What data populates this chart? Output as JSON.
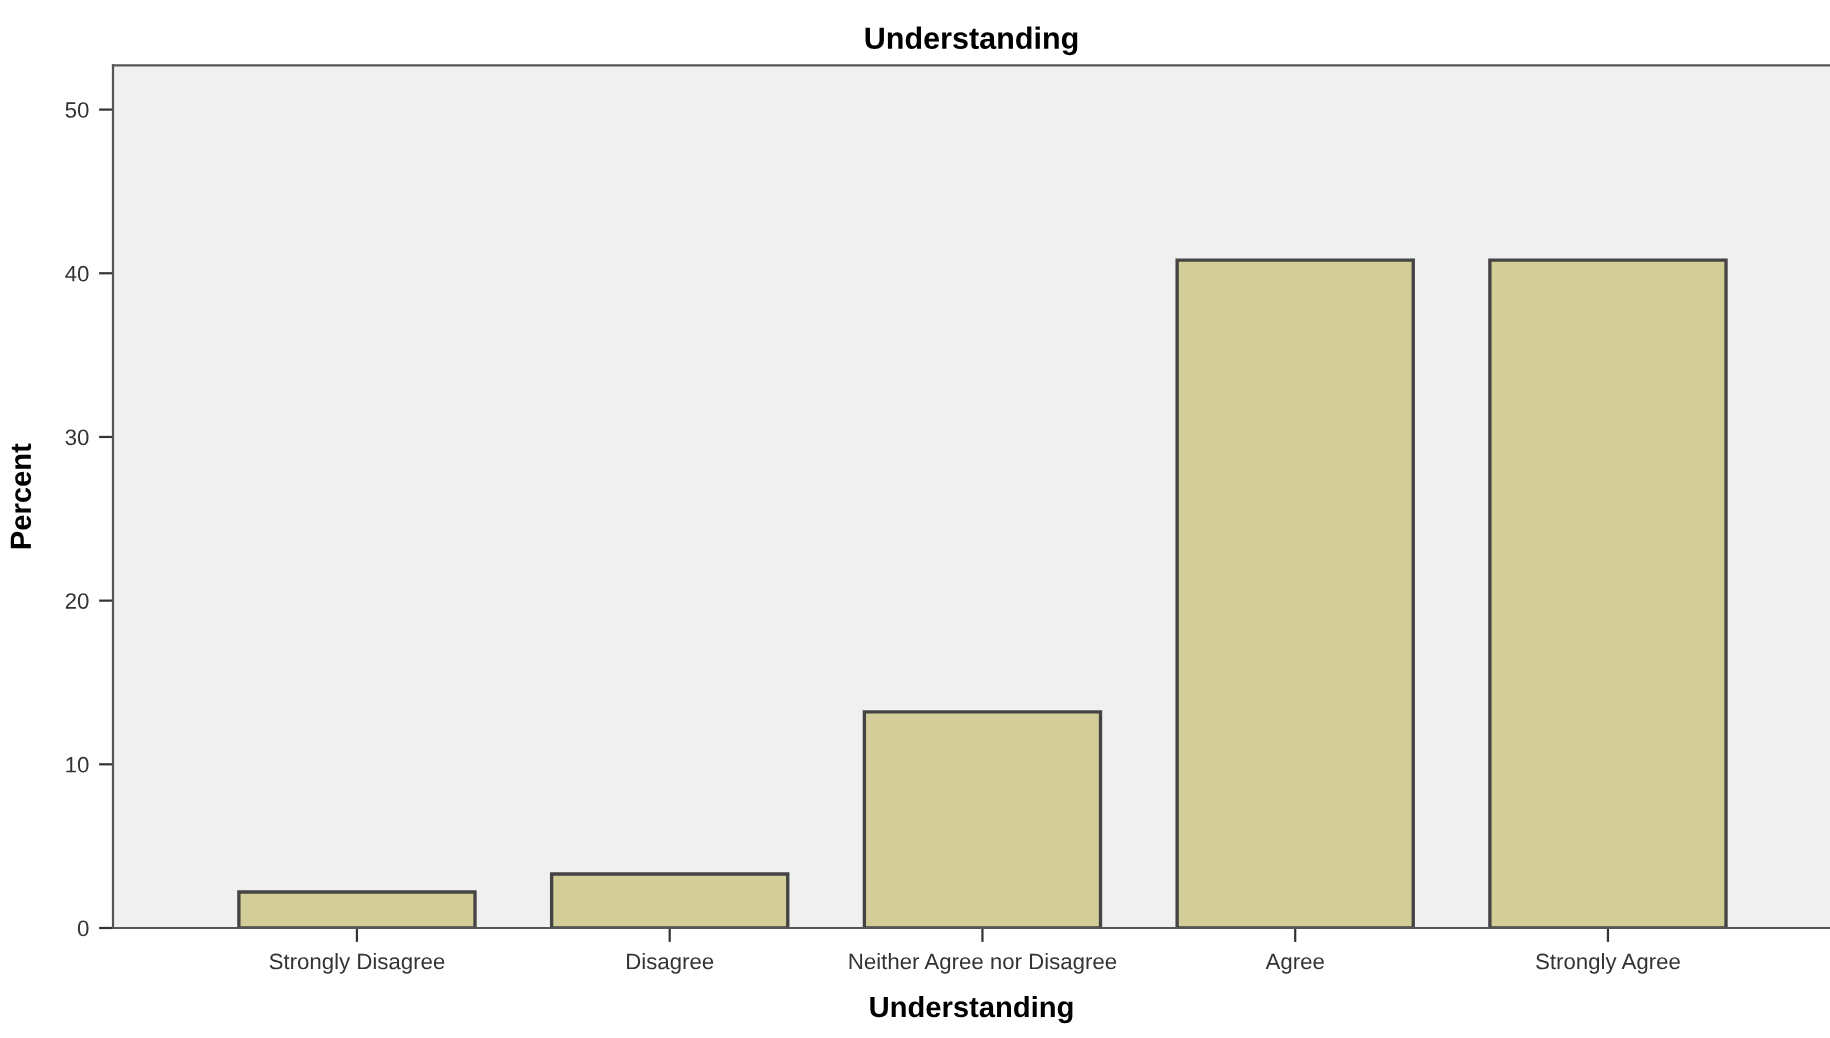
{
  "chart_data": {
    "type": "bar",
    "title": "Understanding",
    "xlabel": "Understanding",
    "ylabel": "Percent",
    "categories": [
      "Strongly Disagree",
      "Disagree",
      "Neither Agree nor Disagree",
      "Agree",
      "Strongly Agree"
    ],
    "values": [
      2.2,
      3.3,
      13.2,
      40.8,
      40.8
    ],
    "color": "#d3ce98",
    "ylim": [
      0,
      52.7
    ],
    "yticks": [
      0,
      10,
      20,
      30,
      40,
      50
    ],
    "grid": false,
    "legend": false
  }
}
